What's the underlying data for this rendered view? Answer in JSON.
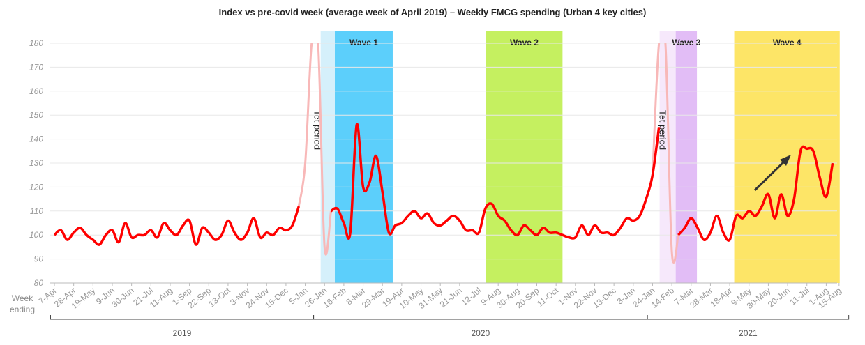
{
  "chart_data": {
    "type": "line",
    "title": "Index vs pre-covid week (average week of April 2019) –  Weekly FMCG spending (Urban 4 key cities)",
    "x_label": "Week ending",
    "categories": [
      "7-Apr",
      null,
      null,
      "28-Apr",
      null,
      null,
      "19-May",
      null,
      null,
      "9-Jun",
      null,
      null,
      "30-Jun",
      null,
      null,
      "21-Jul",
      null,
      null,
      "11-Aug",
      null,
      null,
      "1-Sep",
      null,
      null,
      "22-Sep",
      null,
      null,
      "13-Oct",
      null,
      null,
      "3-Nov",
      null,
      null,
      "24-Nov",
      null,
      null,
      "15-Dec",
      null,
      null,
      "5-Jan",
      null,
      null,
      "26-Jan",
      null,
      null,
      "16-Feb",
      null,
      null,
      "8-Mar",
      null,
      null,
      "29-Mar",
      null,
      null,
      "19-Apr",
      null,
      null,
      "10-May",
      null,
      null,
      "31-May",
      null,
      null,
      "21-Jun",
      null,
      null,
      "12-Jul",
      null,
      null,
      "9-Aug",
      null,
      null,
      "30-Aug",
      null,
      null,
      "20-Sep",
      null,
      null,
      "11-Oct",
      null,
      null,
      "1-Nov",
      null,
      null,
      "22-Nov",
      null,
      null,
      "13-Dec",
      null,
      null,
      "3-Jan",
      null,
      null,
      "24-Jan",
      null,
      null,
      "14-Feb",
      null,
      null,
      "7-Mar",
      null,
      null,
      "28-Mar",
      null,
      null,
      "18-Apr",
      null,
      null,
      "9-May",
      null,
      null,
      "30-May",
      null,
      null,
      "20-Jun",
      null,
      null,
      "11-Jul",
      null,
      null,
      "1-Aug",
      null,
      "15-Aug"
    ],
    "series": [
      {
        "color": "#ff0000",
        "values": [
          100,
          102,
          98,
          101,
          103,
          100,
          98,
          96,
          100,
          102,
          97,
          105,
          99,
          100,
          100,
          102,
          99,
          105,
          102,
          100,
          104,
          106,
          96,
          103,
          101,
          98,
          100,
          106,
          101,
          98,
          101,
          107,
          99,
          101,
          100,
          103,
          102,
          104,
          112,
          null,
          null,
          null,
          null,
          110,
          111,
          105,
          101,
          146,
          120,
          122,
          133,
          118,
          101,
          104,
          105,
          108,
          110,
          107,
          109,
          105,
          104,
          106,
          108,
          106,
          102,
          102,
          101,
          111,
          113,
          108,
          106,
          102,
          100,
          104,
          102,
          100,
          103,
          101,
          101,
          100,
          99,
          99,
          104,
          100,
          104,
          101,
          101,
          100,
          103,
          107,
          106,
          108,
          115,
          125,
          145,
          null,
          null,
          100,
          103,
          107,
          103,
          98,
          101,
          108,
          101,
          98,
          108,
          107,
          110,
          108,
          112,
          117,
          107,
          117,
          108,
          115,
          135,
          136,
          135,
          124,
          116,
          130,
          null
        ]
      },
      {
        "color": "#f8b8b8",
        "values": [
          null,
          null,
          null,
          null,
          null,
          null,
          null,
          null,
          null,
          null,
          null,
          null,
          null,
          null,
          null,
          null,
          null,
          null,
          null,
          null,
          null,
          null,
          null,
          null,
          null,
          null,
          null,
          null,
          null,
          null,
          null,
          null,
          null,
          null,
          null,
          null,
          null,
          null,
          112,
          130,
          180,
          180,
          95,
          110,
          null,
          null,
          null,
          null,
          null,
          null,
          null,
          null,
          null,
          null,
          null,
          null,
          null,
          null,
          null,
          null,
          null,
          null,
          null,
          null,
          null,
          null,
          null,
          null,
          null,
          null,
          null,
          null,
          null,
          null,
          null,
          null,
          null,
          null,
          null,
          null,
          null,
          null,
          null,
          null,
          null,
          null,
          null,
          null,
          null,
          null,
          null,
          null,
          null,
          125,
          180,
          180,
          93,
          100,
          null,
          null,
          null,
          null,
          null,
          null,
          null,
          null,
          null,
          null,
          null,
          null,
          null,
          null,
          null,
          null,
          null,
          null,
          null,
          null,
          null,
          null,
          null,
          null,
          null
        ]
      }
    ],
    "ylim": [
      80,
      180
    ],
    "yticks": [
      80,
      90,
      100,
      110,
      120,
      130,
      140,
      150,
      160,
      170,
      180
    ],
    "grid": true,
    "bands": [
      {
        "label": "Tet period",
        "start": 41.4,
        "end": 43.6,
        "color": "#d5f0fb",
        "vertical": true
      },
      {
        "label": "Wave 1",
        "start": 43.6,
        "end": 52.6,
        "color": "#5ccffb"
      },
      {
        "label": "Wave 2",
        "start": 67.1,
        "end": 79,
        "color": "#c5f060"
      },
      {
        "label": "Tet period",
        "start": 94.1,
        "end": 96.6,
        "color": "#f6e8fb",
        "vertical": true
      },
      {
        "label": "Wave 3",
        "start": 96.6,
        "end": 99.9,
        "color": "#e2bdf6"
      },
      {
        "label": "Wave 4",
        "start": 105.7,
        "end": 122.1,
        "color": "#fde567"
      }
    ],
    "x_groups": [
      {
        "label": "2019",
        "start": -0.6,
        "end": 40.3
      },
      {
        "label": "2020",
        "start": 40.3,
        "end": 92.2
      },
      {
        "label": "2021",
        "start": 92.2,
        "end": 123.5
      }
    ]
  }
}
